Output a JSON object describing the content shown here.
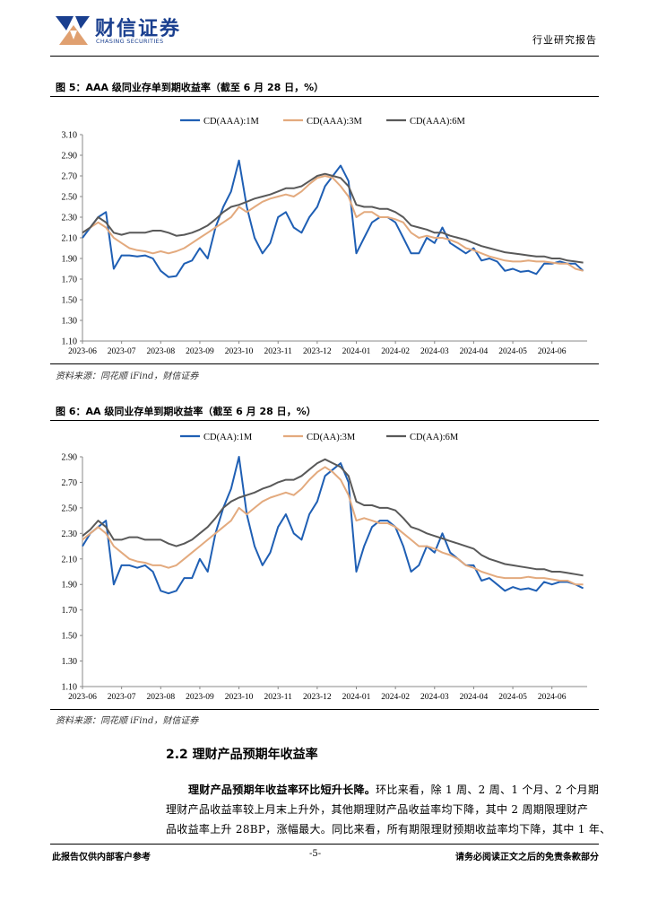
{
  "header": {
    "company_cn": "财信证券",
    "company_en": "CHASING SECURITIES",
    "report_type": "行业研究报告"
  },
  "figures": [
    {
      "title": "图 5：AAA 级同业存单到期收益率（截至 6 月 28 日，%）",
      "source": "资料来源：同花顺 iFind，财信证券"
    },
    {
      "title": "图 6：AA 级同业存单到期收益率（截至 6 月 28 日，%）",
      "source": "资料来源：同花顺 iFind，财信证券"
    }
  ],
  "chart_data": [
    {
      "type": "line",
      "title": "图 5：AAA 级同业存单到期收益率（截至 6 月 28 日，%）",
      "xlabel": "",
      "ylabel": "",
      "x_ticks": [
        "2023-06",
        "2023-07",
        "2023-08",
        "2023-09",
        "2023-10",
        "2023-11",
        "2023-12",
        "2024-01",
        "2024-02",
        "2024-03",
        "2024-04",
        "2024-05",
        "2024-06"
      ],
      "ylim": [
        1.1,
        3.1
      ],
      "y_ticks": [
        "1.10",
        "1.30",
        "1.50",
        "1.70",
        "1.90",
        "2.10",
        "2.30",
        "2.50",
        "2.70",
        "2.90",
        "3.10"
      ],
      "legend_position": "top",
      "grid": false,
      "x": [
        0,
        0.2,
        0.4,
        0.6,
        0.8,
        1,
        1.2,
        1.4,
        1.6,
        1.8,
        2,
        2.2,
        2.4,
        2.6,
        2.8,
        3,
        3.2,
        3.4,
        3.6,
        3.8,
        4,
        4.2,
        4.4,
        4.6,
        4.8,
        5,
        5.2,
        5.4,
        5.6,
        5.8,
        6,
        6.2,
        6.4,
        6.6,
        6.8,
        7,
        7.2,
        7.4,
        7.6,
        7.8,
        8,
        8.2,
        8.4,
        8.6,
        8.8,
        9,
        9.2,
        9.4,
        9.6,
        9.8,
        10,
        10.2,
        10.4,
        10.6,
        10.8,
        11,
        11.2,
        11.4,
        11.6,
        11.8,
        12,
        12.2,
        12.4,
        12.6,
        12.8
      ],
      "series": [
        {
          "name": "CD(AAA):1M",
          "color": "#1f5fb4",
          "values": [
            2.1,
            2.2,
            2.3,
            2.35,
            1.8,
            1.93,
            1.93,
            1.92,
            1.93,
            1.9,
            1.78,
            1.72,
            1.73,
            1.85,
            1.88,
            2.0,
            1.9,
            2.2,
            2.4,
            2.55,
            2.85,
            2.4,
            2.1,
            1.95,
            2.05,
            2.3,
            2.35,
            2.2,
            2.15,
            2.3,
            2.4,
            2.6,
            2.7,
            2.8,
            2.65,
            1.95,
            2.1,
            2.25,
            2.3,
            2.3,
            2.25,
            2.1,
            1.95,
            1.95,
            2.1,
            2.05,
            2.2,
            2.05,
            2.0,
            1.95,
            2.0,
            1.88,
            1.9,
            1.87,
            1.78,
            1.8,
            1.77,
            1.78,
            1.75,
            1.85,
            1.85,
            1.87,
            1.85,
            1.85,
            1.78
          ]
        },
        {
          "name": "CD(AAA):3M",
          "color": "#e3aa7e",
          "values": [
            2.15,
            2.2,
            2.25,
            2.2,
            2.1,
            2.05,
            2.0,
            1.98,
            1.97,
            1.95,
            1.97,
            1.95,
            1.97,
            2.0,
            2.05,
            2.1,
            2.15,
            2.2,
            2.25,
            2.3,
            2.4,
            2.35,
            2.4,
            2.45,
            2.48,
            2.5,
            2.52,
            2.5,
            2.55,
            2.62,
            2.68,
            2.7,
            2.68,
            2.6,
            2.5,
            2.3,
            2.35,
            2.35,
            2.3,
            2.3,
            2.28,
            2.25,
            2.15,
            2.1,
            2.12,
            2.1,
            2.1,
            2.08,
            2.05,
            2.0,
            1.98,
            1.95,
            1.92,
            1.9,
            1.88,
            1.87,
            1.87,
            1.88,
            1.87,
            1.87,
            1.86,
            1.85,
            1.85,
            1.8,
            1.78
          ]
        },
        {
          "name": "CD(AAA):6M",
          "color": "#595959",
          "values": [
            2.15,
            2.2,
            2.3,
            2.25,
            2.15,
            2.13,
            2.15,
            2.15,
            2.15,
            2.17,
            2.17,
            2.15,
            2.12,
            2.13,
            2.15,
            2.18,
            2.22,
            2.28,
            2.35,
            2.4,
            2.42,
            2.45,
            2.48,
            2.5,
            2.52,
            2.55,
            2.58,
            2.58,
            2.6,
            2.65,
            2.7,
            2.72,
            2.7,
            2.68,
            2.6,
            2.42,
            2.4,
            2.4,
            2.38,
            2.38,
            2.35,
            2.3,
            2.22,
            2.2,
            2.18,
            2.15,
            2.15,
            2.12,
            2.1,
            2.08,
            2.05,
            2.02,
            2.0,
            1.98,
            1.96,
            1.95,
            1.94,
            1.93,
            1.92,
            1.92,
            1.9,
            1.9,
            1.88,
            1.87,
            1.86
          ]
        }
      ]
    },
    {
      "type": "line",
      "title": "图 6：AA 级同业存单到期收益率（截至 6 月 28 日，%）",
      "xlabel": "",
      "ylabel": "",
      "x_ticks": [
        "2023-06",
        "2023-07",
        "2023-08",
        "2023-09",
        "2023-10",
        "2023-11",
        "2023-12",
        "2024-01",
        "2024-02",
        "2024-03",
        "2024-04",
        "2024-05",
        "2024-06"
      ],
      "ylim": [
        1.1,
        2.9
      ],
      "y_ticks": [
        "1.10",
        "1.30",
        "1.50",
        "1.70",
        "1.90",
        "2.10",
        "2.30",
        "2.50",
        "2.70",
        "2.90"
      ],
      "legend_position": "top",
      "grid": false,
      "x": [
        0,
        0.2,
        0.4,
        0.6,
        0.8,
        1,
        1.2,
        1.4,
        1.6,
        1.8,
        2,
        2.2,
        2.4,
        2.6,
        2.8,
        3,
        3.2,
        3.4,
        3.6,
        3.8,
        4,
        4.2,
        4.4,
        4.6,
        4.8,
        5,
        5.2,
        5.4,
        5.6,
        5.8,
        6,
        6.2,
        6.4,
        6.6,
        6.8,
        7,
        7.2,
        7.4,
        7.6,
        7.8,
        8,
        8.2,
        8.4,
        8.6,
        8.8,
        9,
        9.2,
        9.4,
        9.6,
        9.8,
        10,
        10.2,
        10.4,
        10.6,
        10.8,
        11,
        11.2,
        11.4,
        11.6,
        11.8,
        12,
        12.2,
        12.4,
        12.6,
        12.8
      ],
      "series": [
        {
          "name": "CD(AA):1M",
          "color": "#1f5fb4",
          "values": [
            2.2,
            2.3,
            2.35,
            2.4,
            1.9,
            2.05,
            2.05,
            2.03,
            2.05,
            2.0,
            1.85,
            1.83,
            1.85,
            1.95,
            1.95,
            2.1,
            2.0,
            2.3,
            2.5,
            2.65,
            2.9,
            2.45,
            2.2,
            2.05,
            2.15,
            2.35,
            2.45,
            2.3,
            2.25,
            2.45,
            2.55,
            2.75,
            2.8,
            2.85,
            2.7,
            2.0,
            2.2,
            2.35,
            2.4,
            2.4,
            2.35,
            2.2,
            2.0,
            2.05,
            2.2,
            2.15,
            2.3,
            2.15,
            2.1,
            2.05,
            2.05,
            1.93,
            1.95,
            1.9,
            1.85,
            1.88,
            1.86,
            1.87,
            1.85,
            1.92,
            1.9,
            1.92,
            1.92,
            1.9,
            1.87
          ]
        },
        {
          "name": "CD(AA):3M",
          "color": "#e3aa7e",
          "values": [
            2.25,
            2.3,
            2.35,
            2.3,
            2.2,
            2.15,
            2.1,
            2.08,
            2.07,
            2.05,
            2.05,
            2.03,
            2.05,
            2.1,
            2.15,
            2.2,
            2.25,
            2.3,
            2.35,
            2.4,
            2.5,
            2.45,
            2.5,
            2.55,
            2.58,
            2.6,
            2.62,
            2.6,
            2.65,
            2.72,
            2.78,
            2.82,
            2.78,
            2.72,
            2.6,
            2.4,
            2.42,
            2.4,
            2.38,
            2.38,
            2.35,
            2.3,
            2.25,
            2.2,
            2.2,
            2.18,
            2.15,
            2.13,
            2.1,
            2.05,
            2.03,
            2.0,
            1.98,
            1.96,
            1.95,
            1.95,
            1.95,
            1.96,
            1.95,
            1.95,
            1.94,
            1.93,
            1.93,
            1.9,
            1.9
          ]
        },
        {
          "name": "CD(AA):6M",
          "color": "#595959",
          "values": [
            2.28,
            2.33,
            2.4,
            2.35,
            2.25,
            2.25,
            2.27,
            2.27,
            2.25,
            2.25,
            2.25,
            2.22,
            2.2,
            2.22,
            2.25,
            2.3,
            2.35,
            2.42,
            2.5,
            2.55,
            2.58,
            2.6,
            2.62,
            2.65,
            2.67,
            2.7,
            2.72,
            2.72,
            2.75,
            2.8,
            2.85,
            2.88,
            2.85,
            2.82,
            2.75,
            2.55,
            2.52,
            2.52,
            2.5,
            2.5,
            2.48,
            2.42,
            2.35,
            2.33,
            2.3,
            2.28,
            2.26,
            2.24,
            2.22,
            2.2,
            2.18,
            2.13,
            2.1,
            2.08,
            2.06,
            2.05,
            2.04,
            2.03,
            2.02,
            2.02,
            2.0,
            2.0,
            1.99,
            1.98,
            1.97
          ]
        }
      ]
    }
  ],
  "section": {
    "title": "2.2 理财产品预期年收益率",
    "para_lead": "理财产品预期年收益率环比短升长降。",
    "para_line1_rest": "环比来看，除 1 周、2 周、1 个月、2 个月期",
    "para_line2": "理财产品收益率较上月末上升外，其他期理财产品收益率均下降，其中 2 周期限理财产",
    "para_line3": "品收益率上升 28BP，涨幅最大。同比来看，所有期限理财预期收益率均下降，其中 1 年、"
  },
  "footer": {
    "left": "此报告仅供内部客户参考",
    "page": "-5-",
    "right": "请务必阅读正文之后的免责条款部分"
  }
}
